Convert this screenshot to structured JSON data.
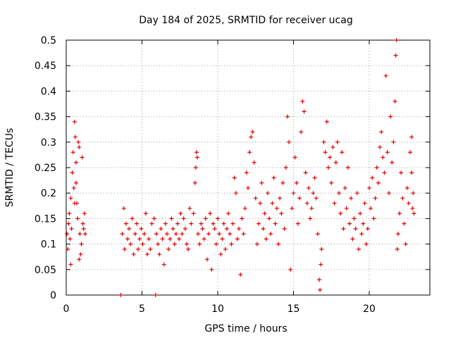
{
  "chart_data": {
    "type": "scatter",
    "title": "Day 184 of 2025, SRMTID for receiver ucag",
    "xlabel": "GPS time / hours",
    "ylabel": "SRMTID / TECUs",
    "xlim": [
      0,
      24
    ],
    "ylim": [
      0,
      0.5
    ],
    "xticks": [
      0,
      5,
      10,
      15,
      20
    ],
    "yticks": [
      0,
      0.05,
      0.1,
      0.15,
      0.2,
      0.25,
      0.3,
      0.35,
      0.4,
      0.45,
      0.5
    ],
    "xtick_labels": [
      "0",
      "5",
      "10",
      "15",
      "20"
    ],
    "ytick_labels": [
      "0",
      "0.05",
      "0.1",
      "0.15",
      "0.2",
      "0.25",
      "0.3",
      "0.35",
      "0.4",
      "0.45",
      "0.5"
    ],
    "grid": true,
    "marker": "plus",
    "color": "#e00000",
    "series": [
      {
        "name": "SRMTID",
        "points": [
          [
            0.05,
            0.12
          ],
          [
            0.1,
            0.09
          ],
          [
            0.15,
            0.14
          ],
          [
            0.2,
            0.16
          ],
          [
            0.25,
            0.11
          ],
          [
            0.3,
            0.19
          ],
          [
            0.35,
            0.13
          ],
          [
            0.4,
            0.24
          ],
          [
            0.45,
            0.28
          ],
          [
            0.5,
            0.21
          ],
          [
            0.55,
            0.34
          ],
          [
            0.6,
            0.31
          ],
          [
            0.65,
            0.26
          ],
          [
            0.7,
            0.18
          ],
          [
            0.75,
            0.15
          ],
          [
            0.8,
            0.3
          ],
          [
            0.85,
            0.29
          ],
          [
            0.9,
            0.12
          ],
          [
            0.95,
            0.08
          ],
          [
            1.0,
            0.1
          ],
          [
            1.05,
            0.27
          ],
          [
            1.1,
            0.14
          ],
          [
            1.15,
            0.13
          ],
          [
            1.2,
            0.16
          ],
          [
            1.25,
            0.12
          ],
          [
            0.3,
            0.06
          ],
          [
            0.55,
            0.18
          ],
          [
            0.65,
            0.22
          ],
          [
            0.85,
            0.07
          ],
          [
            3.6,
            0.0
          ],
          [
            3.7,
            0.12
          ],
          [
            3.8,
            0.17
          ],
          [
            3.85,
            0.09
          ],
          [
            3.95,
            0.14
          ],
          [
            4.05,
            0.11
          ],
          [
            4.15,
            0.13
          ],
          [
            4.25,
            0.1
          ],
          [
            4.35,
            0.15
          ],
          [
            4.45,
            0.08
          ],
          [
            4.55,
            0.12
          ],
          [
            4.65,
            0.14
          ],
          [
            4.75,
            0.09
          ],
          [
            4.85,
            0.11
          ],
          [
            4.95,
            0.13
          ],
          [
            5.05,
            0.1
          ],
          [
            5.15,
            0.12
          ],
          [
            5.25,
            0.16
          ],
          [
            5.35,
            0.08
          ],
          [
            5.45,
            0.11
          ],
          [
            5.55,
            0.09
          ],
          [
            5.65,
            0.14
          ],
          [
            5.9,
            0.0
          ],
          [
            5.8,
            0.15
          ],
          [
            5.95,
            0.12
          ],
          [
            6.05,
            0.1
          ],
          [
            6.15,
            0.08
          ],
          [
            6.25,
            0.13
          ],
          [
            6.35,
            0.11
          ],
          [
            6.45,
            0.06
          ],
          [
            6.55,
            0.14
          ],
          [
            6.65,
            0.12
          ],
          [
            6.75,
            0.09
          ],
          [
            6.85,
            0.11
          ],
          [
            6.95,
            0.15
          ],
          [
            7.05,
            0.13
          ],
          [
            7.15,
            0.1
          ],
          [
            7.25,
            0.12
          ],
          [
            7.35,
            0.14
          ],
          [
            7.45,
            0.11
          ],
          [
            7.55,
            0.16
          ],
          [
            7.65,
            0.12
          ],
          [
            7.75,
            0.15
          ],
          [
            7.85,
            0.13
          ],
          [
            7.95,
            0.1
          ],
          [
            8.05,
            0.09
          ],
          [
            8.15,
            0.17
          ],
          [
            8.25,
            0.14
          ],
          [
            8.4,
            0.16
          ],
          [
            8.5,
            0.22
          ],
          [
            8.55,
            0.25
          ],
          [
            8.6,
            0.28
          ],
          [
            8.65,
            0.27
          ],
          [
            8.7,
            0.12
          ],
          [
            8.8,
            0.1
          ],
          [
            8.9,
            0.14
          ],
          [
            9.0,
            0.13
          ],
          [
            9.1,
            0.11
          ],
          [
            9.2,
            0.15
          ],
          [
            9.3,
            0.07
          ],
          [
            9.4,
            0.12
          ],
          [
            9.5,
            0.16
          ],
          [
            9.6,
            0.05
          ],
          [
            9.7,
            0.14
          ],
          [
            9.8,
            0.13
          ],
          [
            9.9,
            0.1
          ],
          [
            10.0,
            0.15
          ],
          [
            10.1,
            0.12
          ],
          [
            10.2,
            0.08
          ],
          [
            10.3,
            0.11
          ],
          [
            10.4,
            0.14
          ],
          [
            10.5,
            0.09
          ],
          [
            10.6,
            0.13
          ],
          [
            10.7,
            0.16
          ],
          [
            10.8,
            0.12
          ],
          [
            10.9,
            0.1
          ],
          [
            11.0,
            0.14
          ],
          [
            11.1,
            0.23
          ],
          [
            11.2,
            0.2
          ],
          [
            11.3,
            0.11
          ],
          [
            11.4,
            0.13
          ],
          [
            11.5,
            0.04
          ],
          [
            11.6,
            0.15
          ],
          [
            11.7,
            0.12
          ],
          [
            11.8,
            0.17
          ],
          [
            11.9,
            0.24
          ],
          [
            12.0,
            0.21
          ],
          [
            12.1,
            0.28
          ],
          [
            12.2,
            0.31
          ],
          [
            12.3,
            0.32
          ],
          [
            12.4,
            0.26
          ],
          [
            12.5,
            0.19
          ],
          [
            12.6,
            0.1
          ],
          [
            12.7,
            0.14
          ],
          [
            12.8,
            0.18
          ],
          [
            12.9,
            0.22
          ],
          [
            13.0,
            0.13
          ],
          [
            13.1,
            0.16
          ],
          [
            13.2,
            0.11
          ],
          [
            13.3,
            0.2
          ],
          [
            13.4,
            0.15
          ],
          [
            13.5,
            0.12
          ],
          [
            13.6,
            0.18
          ],
          [
            13.7,
            0.23
          ],
          [
            13.8,
            0.14
          ],
          [
            13.9,
            0.17
          ],
          [
            14.0,
            0.1
          ],
          [
            14.1,
            0.19
          ],
          [
            14.2,
            0.16
          ],
          [
            14.3,
            0.22
          ],
          [
            14.4,
            0.13
          ],
          [
            14.5,
            0.25
          ],
          [
            14.6,
            0.35
          ],
          [
            14.7,
            0.3
          ],
          [
            14.8,
            0.05
          ],
          [
            14.9,
            0.17
          ],
          [
            15.0,
            0.2
          ],
          [
            15.1,
            0.27
          ],
          [
            15.2,
            0.22
          ],
          [
            15.3,
            0.14
          ],
          [
            15.4,
            0.19
          ],
          [
            15.5,
            0.32
          ],
          [
            15.6,
            0.38
          ],
          [
            15.7,
            0.36
          ],
          [
            15.8,
            0.24
          ],
          [
            15.9,
            0.18
          ],
          [
            16.0,
            0.21
          ],
          [
            16.1,
            0.15
          ],
          [
            16.2,
            0.17
          ],
          [
            16.3,
            0.2
          ],
          [
            16.4,
            0.23
          ],
          [
            16.5,
            0.19
          ],
          [
            16.6,
            0.12
          ],
          [
            16.7,
            0.03
          ],
          [
            16.75,
            0.01
          ],
          [
            16.8,
            0.06
          ],
          [
            16.85,
            0.09
          ],
          [
            17.0,
            0.3
          ],
          [
            17.1,
            0.28
          ],
          [
            17.2,
            0.34
          ],
          [
            17.3,
            0.25
          ],
          [
            17.4,
            0.27
          ],
          [
            17.5,
            0.22
          ],
          [
            17.6,
            0.29
          ],
          [
            17.7,
            0.18
          ],
          [
            17.8,
            0.26
          ],
          [
            17.9,
            0.3
          ],
          [
            18.0,
            0.2
          ],
          [
            18.1,
            0.16
          ],
          [
            18.2,
            0.28
          ],
          [
            18.3,
            0.13
          ],
          [
            18.4,
            0.21
          ],
          [
            18.5,
            0.17
          ],
          [
            18.6,
            0.25
          ],
          [
            18.7,
            0.14
          ],
          [
            18.8,
            0.19
          ],
          [
            18.9,
            0.11
          ],
          [
            19.0,
            0.15
          ],
          [
            19.1,
            0.13
          ],
          [
            19.2,
            0.2
          ],
          [
            19.3,
            0.09
          ],
          [
            19.4,
            0.16
          ],
          [
            19.5,
            0.12
          ],
          [
            19.6,
            0.14
          ],
          [
            19.7,
            0.18
          ],
          [
            19.8,
            0.1
          ],
          [
            19.9,
            0.13
          ],
          [
            20.0,
            0.21
          ],
          [
            20.1,
            0.17
          ],
          [
            20.2,
            0.23
          ],
          [
            20.3,
            0.15
          ],
          [
            20.4,
            0.19
          ],
          [
            20.5,
            0.25
          ],
          [
            20.6,
            0.22
          ],
          [
            20.7,
            0.29
          ],
          [
            20.8,
            0.32
          ],
          [
            20.9,
            0.27
          ],
          [
            21.0,
            0.24
          ],
          [
            21.1,
            0.43
          ],
          [
            21.2,
            0.28
          ],
          [
            21.3,
            0.2
          ],
          [
            21.4,
            0.35
          ],
          [
            21.5,
            0.26
          ],
          [
            21.6,
            0.3
          ],
          [
            21.7,
            0.38
          ],
          [
            21.75,
            0.47
          ],
          [
            21.8,
            0.5
          ],
          [
            21.85,
            0.09
          ],
          [
            21.9,
            0.12
          ],
          [
            22.0,
            0.16
          ],
          [
            22.1,
            0.24
          ],
          [
            22.2,
            0.19
          ],
          [
            22.3,
            0.14
          ],
          [
            22.4,
            0.1
          ],
          [
            22.5,
            0.21
          ],
          [
            22.6,
            0.18
          ],
          [
            22.7,
            0.28
          ],
          [
            22.8,
            0.31
          ],
          [
            22.85,
            0.17
          ],
          [
            22.9,
            0.2
          ],
          [
            22.95,
            0.16
          ],
          [
            22.8,
            0.24
          ]
        ]
      }
    ]
  }
}
